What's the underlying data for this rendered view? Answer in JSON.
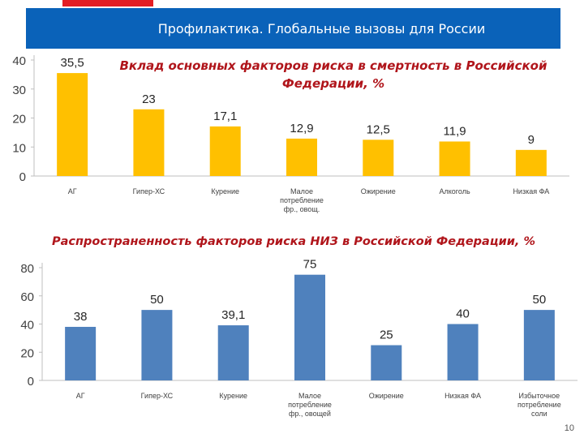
{
  "header": {
    "title": "Профилактика. Глобальные вызовы для России"
  },
  "colors": {
    "header_background": "#0a62b9",
    "accent_red": "#e31e24",
    "title_text": "#b0151b",
    "bar_yellow": "#ffc000",
    "bar_blue": "#4f81bd"
  },
  "page_number": "10",
  "chart_data": [
    {
      "type": "bar",
      "title": "Вклад основных факторов риска в смертность в Российской Федерации, %",
      "categories": [
        "АГ",
        "Гипер-ХС",
        "Курение",
        "Малое потребление фр., овощ.",
        "Ожирение",
        "Алкоголь",
        "Низкая ФА"
      ],
      "values": [
        35.5,
        23,
        17.1,
        12.9,
        12.5,
        11.9,
        9
      ],
      "value_labels": [
        "35,5",
        "23",
        "17,1",
        "12,9",
        "12,5",
        "11,9",
        "9"
      ],
      "ylim": [
        0,
        40
      ],
      "yticks": [
        0,
        10,
        20,
        30,
        40
      ],
      "grid": false,
      "color": "#ffc000"
    },
    {
      "type": "bar",
      "title": "Распространенность факторов риска НИЗ в Российской Федерации, %",
      "categories": [
        "АГ",
        "Гипер-ХС",
        "Курение",
        "Малое потребление фр., овощей",
        "Ожирение",
        "Низкая ФА",
        "Избыточное потребление соли"
      ],
      "values": [
        38,
        50,
        39.1,
        75,
        25,
        40,
        50
      ],
      "value_labels": [
        "38",
        "50",
        "39,1",
        "75",
        "25",
        "40",
        "50"
      ],
      "ylim": [
        0,
        80
      ],
      "yticks": [
        0,
        20,
        40,
        60,
        80
      ],
      "grid": false,
      "color": "#4f81bd"
    }
  ]
}
